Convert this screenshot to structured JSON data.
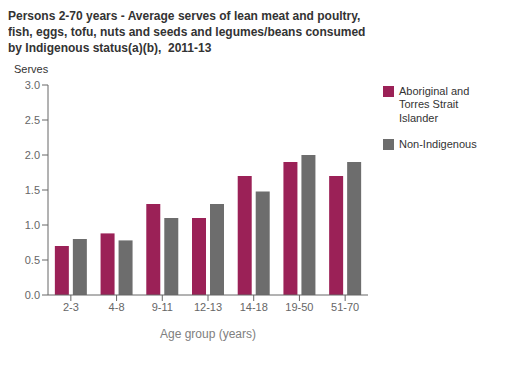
{
  "chart_data": {
    "type": "bar",
    "title": "Persons 2-70 years - Average serves of lean meat and poultry,\nfish, eggs, tofu, nuts and seeds and legumes/beans consumed\nby Indigenous status(a)(b),  2011-13",
    "ylabel": "Serves",
    "xlabel": "Age group (years)",
    "categories": [
      "2-3",
      "4-8",
      "9-11",
      "12-13",
      "14-18",
      "19-50",
      "51-70"
    ],
    "series": [
      {
        "name": "Aboriginal and\nTorres Strait\nIslander",
        "color": "#9B2157",
        "values": [
          0.7,
          0.88,
          1.3,
          1.1,
          1.7,
          1.9,
          1.7
        ]
      },
      {
        "name": "Non-Indigenous",
        "color": "#6D6D6D",
        "values": [
          0.8,
          0.78,
          1.1,
          1.3,
          1.48,
          2.0,
          1.9
        ]
      }
    ],
    "ylim": [
      0,
      3.0
    ],
    "yticks": [
      {
        "value": 0,
        "label": "0.0"
      },
      0.5,
      {
        "value": 1,
        "label": "1.0"
      },
      1.5,
      {
        "value": 2,
        "label": "2.0"
      },
      2.5,
      {
        "value": 3,
        "label": "3.0"
      }
    ],
    "grid": false,
    "legend": "right"
  }
}
